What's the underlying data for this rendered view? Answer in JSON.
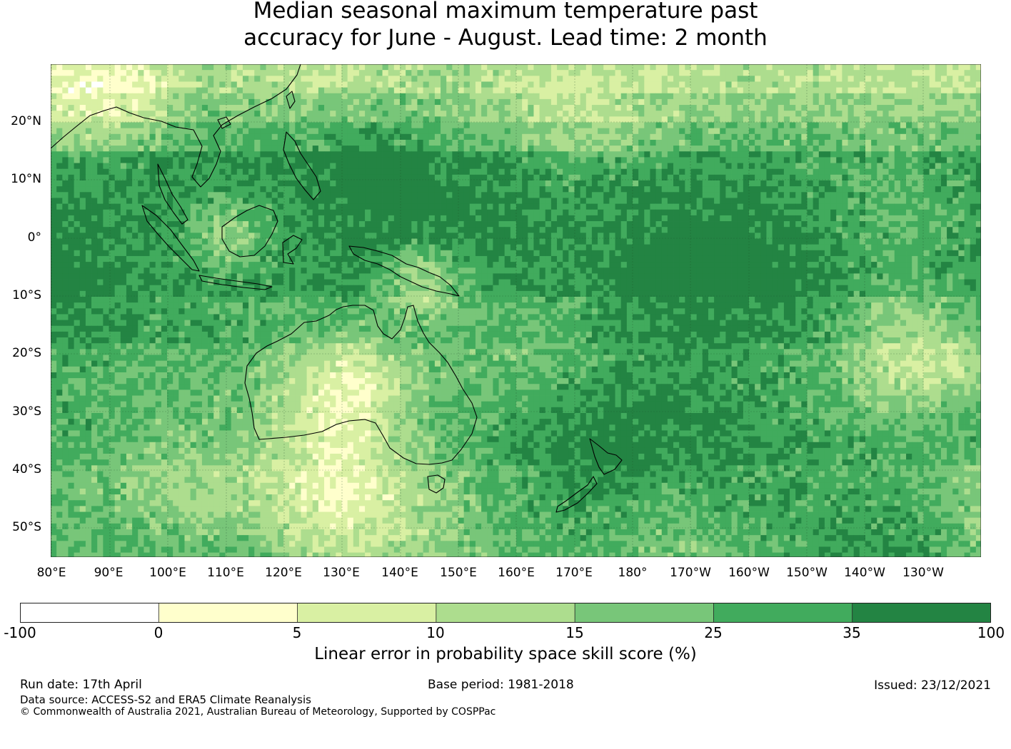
{
  "title_line1": "Median seasonal maximum temperature past",
  "title_line2": "accuracy for June - August. Lead time: 2 month",
  "map": {
    "lat_labels": [
      "20°N",
      "10°N",
      "0°",
      "10°S",
      "20°S",
      "30°S",
      "40°S",
      "50°S"
    ],
    "lon_labels": [
      "80°E",
      "90°E",
      "100°E",
      "110°E",
      "120°E",
      "130°E",
      "140°E",
      "150°E",
      "160°E",
      "170°E",
      "180°",
      "170°W",
      "160°W",
      "150°W",
      "140°W",
      "130°W"
    ],
    "lat_range": [
      -55,
      30
    ],
    "lon_range": [
      80,
      240
    ]
  },
  "colorbar": {
    "ticks": [
      "-100",
      "0",
      "5",
      "10",
      "15",
      "25",
      "35",
      "100"
    ],
    "colors": [
      "#ffffff",
      "#ffffcc",
      "#d9f0a3",
      "#addd8e",
      "#78c679",
      "#41ab5d",
      "#238443"
    ],
    "label": "Linear error in probability space skill score (%)"
  },
  "footer": {
    "run_date": "Run date: 17th April",
    "base_period": "Base period: 1981-2018",
    "issued": "Issued: 23/12/2021",
    "data_source": "Data source: ACCESS-S2 and ERA5 Climate Reanalysis",
    "copyright": "© Commonwealth of Australia 2021, Australian Bureau of Meteorology, Supported by COSPPac"
  }
}
